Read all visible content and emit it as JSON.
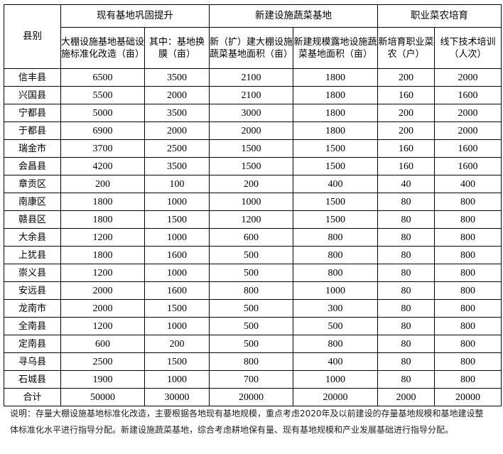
{
  "table": {
    "county_header": "县别",
    "group_headers": [
      "现有基地巩固提升",
      "新建设施蔬菜基地",
      "职业菜农培育"
    ],
    "sub_headers": [
      "大棚设施基地基础设施标准化改造（亩）",
      "其中：基地换膜（亩）",
      "新（扩）建大棚设施蔬菜基地面积（亩）",
      "新建规模露地设施蔬菜基地面积（亩）",
      "新培育职业菜农（户）",
      "线下技术培训（人次）"
    ],
    "rows": [
      [
        "信丰县",
        "6500",
        "3500",
        "2100",
        "1800",
        "200",
        "2000"
      ],
      [
        "兴国县",
        "5500",
        "2000",
        "2100",
        "1800",
        "160",
        "1600"
      ],
      [
        "宁都县",
        "5000",
        "3500",
        "3000",
        "1800",
        "200",
        "2000"
      ],
      [
        "于都县",
        "6900",
        "2000",
        "2000",
        "1800",
        "200",
        "2000"
      ],
      [
        "瑞金市",
        "3700",
        "2500",
        "1500",
        "1500",
        "160",
        "1600"
      ],
      [
        "会昌县",
        "4200",
        "3500",
        "1500",
        "1500",
        "160",
        "1600"
      ],
      [
        "章贡区",
        "200",
        "100",
        "200",
        "400",
        "40",
        "400"
      ],
      [
        "南康区",
        "1800",
        "1000",
        "1000",
        "1500",
        "80",
        "800"
      ],
      [
        "赣县区",
        "1800",
        "1500",
        "1200",
        "1500",
        "80",
        "800"
      ],
      [
        "大余县",
        "1200",
        "1000",
        "600",
        "800",
        "80",
        "800"
      ],
      [
        "上犹县",
        "1800",
        "1600",
        "500",
        "800",
        "80",
        "800"
      ],
      [
        "崇义县",
        "1200",
        "1000",
        "500",
        "800",
        "80",
        "800"
      ],
      [
        "安远县",
        "2000",
        "1600",
        "800",
        "1000",
        "80",
        "800"
      ],
      [
        "龙南市",
        "2000",
        "1500",
        "500",
        "300",
        "80",
        "800"
      ],
      [
        "全南县",
        "1200",
        "1000",
        "500",
        "500",
        "80",
        "800"
      ],
      [
        "定南县",
        "600",
        "200",
        "500",
        "800",
        "80",
        "800"
      ],
      [
        "寻乌县",
        "2500",
        "1500",
        "800",
        "400",
        "80",
        "800"
      ],
      [
        "石城县",
        "1900",
        "1000",
        "700",
        "1000",
        "80",
        "800"
      ],
      [
        "合计",
        "50000",
        "30000",
        "20000",
        "20000",
        "2000",
        "20000"
      ]
    ]
  },
  "note": "说明：存量大棚设施基地标准化改造，主要根据各地现有基地规模，重点考虑2020年及以前建设的存量基地规模和基地建设整体标准化水平进行指导分配。新建设施蔬菜基地，综合考虑耕地保有量、现有基地规模和产业发展基础进行指导分配。"
}
